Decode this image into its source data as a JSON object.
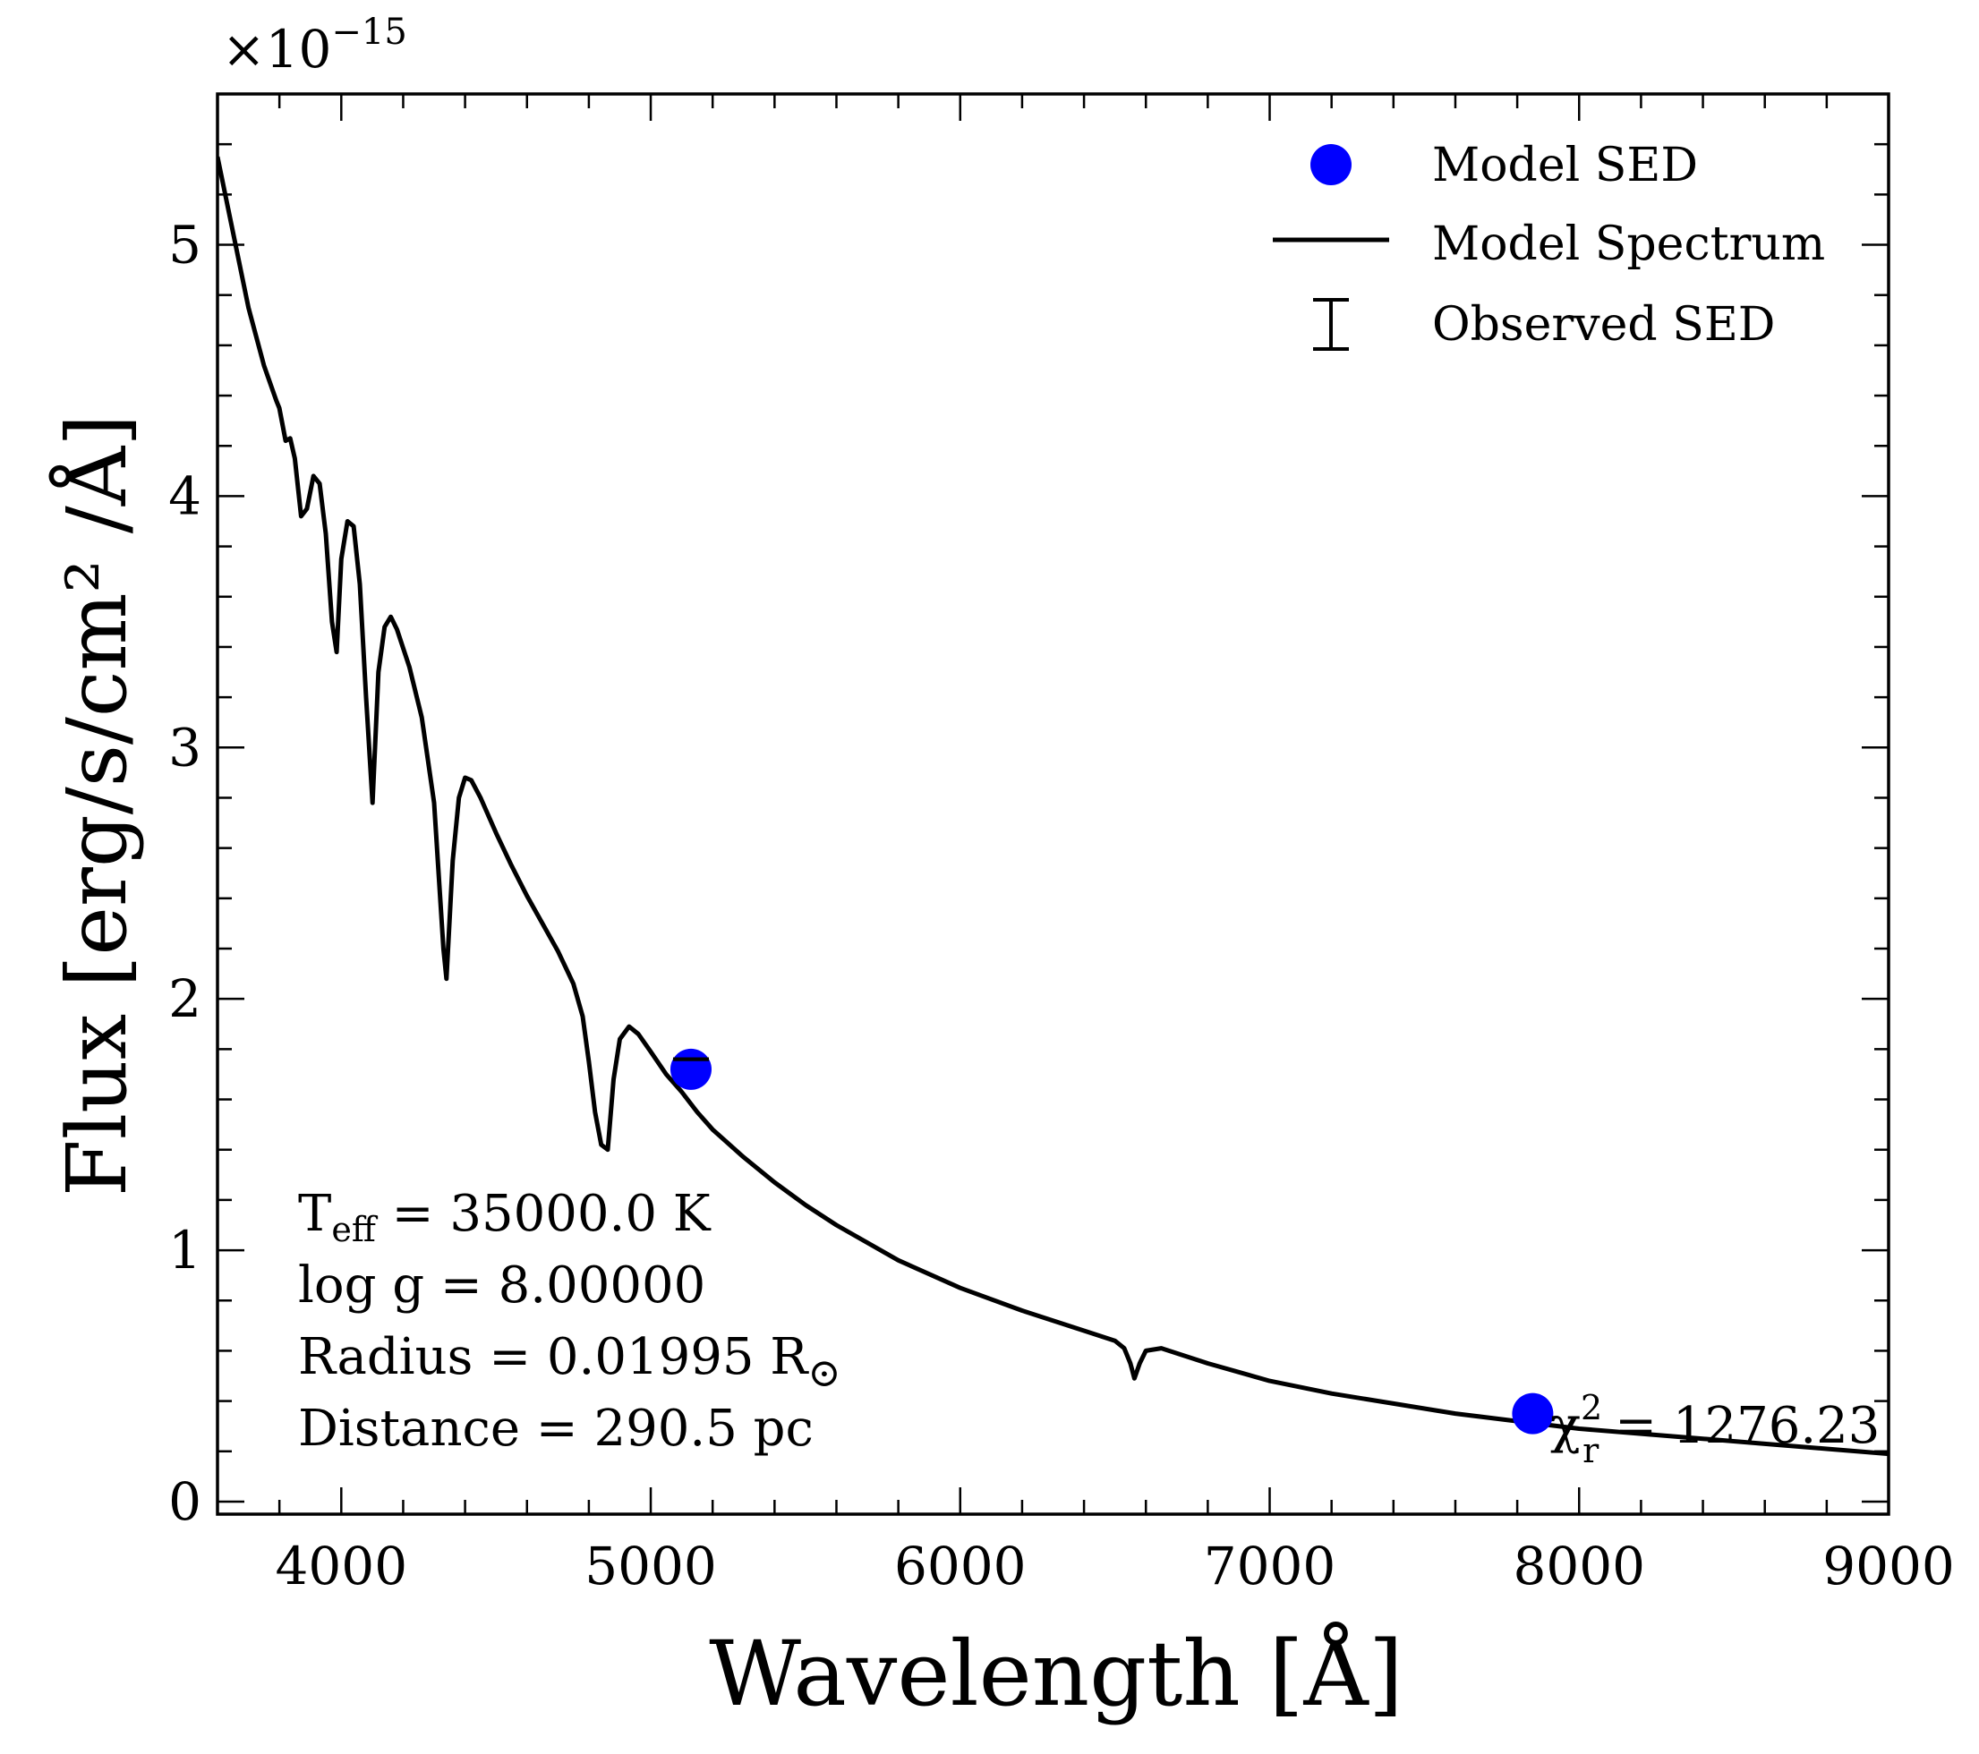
{
  "chart_data": {
    "type": "line",
    "title": "",
    "xlabel": "Wavelength [Å]",
    "ylabel": "Flux [erg/s/cm² /Å]",
    "y_multiplier_label": "×10",
    "y_multiplier_exponent": "−15",
    "xlim": [
      3600,
      9000
    ],
    "ylim": [
      -0.05,
      5.6
    ],
    "x_ticks": [
      4000,
      5000,
      6000,
      7000,
      8000,
      9000
    ],
    "x_tick_labels": [
      "4000",
      "5000",
      "6000",
      "7000",
      "8000",
      "9000"
    ],
    "y_ticks": [
      0,
      1,
      2,
      3,
      4,
      5
    ],
    "y_tick_labels": [
      "0",
      "1",
      "2",
      "3",
      "4",
      "5"
    ],
    "grid": false,
    "legend_position": "top-right",
    "series": [
      {
        "name": "Model Spectrum",
        "kind": "line",
        "color": "#000000",
        "x": [
          3600,
          3650,
          3700,
          3750,
          3790,
          3800,
          3820,
          3835,
          3850,
          3870,
          3889,
          3910,
          3930,
          3950,
          3970,
          3985,
          4000,
          4020,
          4040,
          4060,
          4080,
          4101,
          4120,
          4140,
          4160,
          4180,
          4220,
          4260,
          4300,
          4330,
          4340,
          4360,
          4380,
          4400,
          4420,
          4450,
          4500,
          4550,
          4600,
          4650,
          4700,
          4750,
          4780,
          4800,
          4820,
          4840,
          4861,
          4880,
          4900,
          4930,
          4960,
          5000,
          5050,
          5100,
          5150,
          5200,
          5300,
          5400,
          5500,
          5600,
          5800,
          6000,
          6200,
          6400,
          6500,
          6530,
          6550,
          6563,
          6580,
          6600,
          6650,
          6700,
          6800,
          7000,
          7200,
          7400,
          7600,
          7800,
          8000,
          8200,
          8400,
          8600,
          8800,
          9000
        ],
        "y": [
          5.35,
          5.05,
          4.75,
          4.52,
          4.38,
          4.35,
          4.22,
          4.23,
          4.15,
          3.92,
          3.95,
          4.08,
          4.05,
          3.85,
          3.5,
          3.38,
          3.75,
          3.9,
          3.88,
          3.65,
          3.2,
          2.78,
          3.3,
          3.48,
          3.52,
          3.47,
          3.32,
          3.12,
          2.78,
          2.2,
          2.08,
          2.55,
          2.8,
          2.88,
          2.87,
          2.8,
          2.66,
          2.53,
          2.41,
          2.3,
          2.19,
          2.06,
          1.93,
          1.75,
          1.55,
          1.42,
          1.4,
          1.68,
          1.84,
          1.89,
          1.86,
          1.79,
          1.7,
          1.63,
          1.55,
          1.48,
          1.37,
          1.27,
          1.18,
          1.1,
          0.96,
          0.85,
          0.76,
          0.68,
          0.64,
          0.61,
          0.55,
          0.49,
          0.55,
          0.6,
          0.61,
          0.59,
          0.55,
          0.48,
          0.43,
          0.39,
          0.35,
          0.32,
          0.29,
          0.27,
          0.25,
          0.23,
          0.21,
          0.19
        ]
      },
      {
        "name": "Model SED",
        "kind": "scatter",
        "color": "#0000ff",
        "x": [
          5130,
          7850
        ],
        "y": [
          1.72,
          0.35
        ]
      },
      {
        "name": "Observed SED",
        "kind": "errorbar",
        "color": "#000000",
        "x": [
          5130
        ],
        "y": [
          1.76
        ],
        "yerr": [
          0.0
        ]
      }
    ],
    "annotations": {
      "teff_label": "T",
      "teff_sub": "eff",
      "teff_value": " = 35000.0 K",
      "logg_line": "log g = 8.00000",
      "radius_line": "Radius = 0.01995 R",
      "radius_symbol": "⊙",
      "distance_line": "Distance = 290.5 pc",
      "chi_label": "χ",
      "chi_sup": "2",
      "chi_sub": "r",
      "chi_value": " = 1276.23"
    }
  },
  "legend": {
    "model_sed": "Model SED",
    "model_spectrum": "Model Spectrum",
    "observed_sed": "Observed SED"
  }
}
